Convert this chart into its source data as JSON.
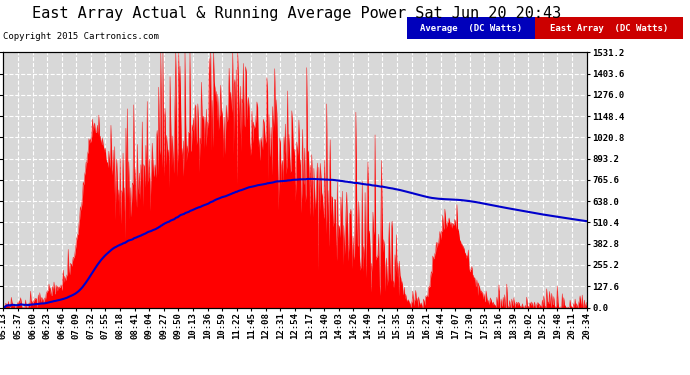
{
  "title": "East Array Actual & Running Average Power Sat Jun 20 20:43",
  "copyright": "Copyright 2015 Cartronics.com",
  "legend1_text": "Average  (DC Watts)",
  "legend2_text": "East Array  (DC Watts)",
  "legend1_bg": "#0000bb",
  "legend2_bg": "#cc0000",
  "ytick_labels": [
    "0.0",
    "127.6",
    "255.2",
    "382.8",
    "510.4",
    "638.0",
    "765.6",
    "893.2",
    "1020.8",
    "1148.4",
    "1276.0",
    "1403.6",
    "1531.2"
  ],
  "ytick_values": [
    0.0,
    127.6,
    255.2,
    382.8,
    510.4,
    638.0,
    765.6,
    893.2,
    1020.8,
    1148.4,
    1276.0,
    1403.6,
    1531.2
  ],
  "ymax": 1531.2,
  "background_color": "#ffffff",
  "plot_bg_color": "#d8d8d8",
  "grid_color": "#ffffff",
  "fill_color": "#ff0000",
  "line_color": "#0000cc",
  "title_fontsize": 11,
  "copyright_fontsize": 6.5,
  "tick_fontsize": 6.5,
  "legend_fontsize": 6.5,
  "xticks": [
    "05:13",
    "05:37",
    "06:00",
    "06:23",
    "06:46",
    "07:09",
    "07:32",
    "07:55",
    "08:18",
    "08:41",
    "09:04",
    "09:27",
    "09:50",
    "10:13",
    "10:36",
    "10:59",
    "11:22",
    "11:45",
    "12:08",
    "12:31",
    "12:54",
    "13:17",
    "13:40",
    "14:03",
    "14:26",
    "14:49",
    "15:12",
    "15:35",
    "15:58",
    "16:21",
    "16:44",
    "17:07",
    "17:30",
    "17:53",
    "18:16",
    "18:39",
    "19:02",
    "19:25",
    "19:48",
    "20:11",
    "20:34"
  ]
}
